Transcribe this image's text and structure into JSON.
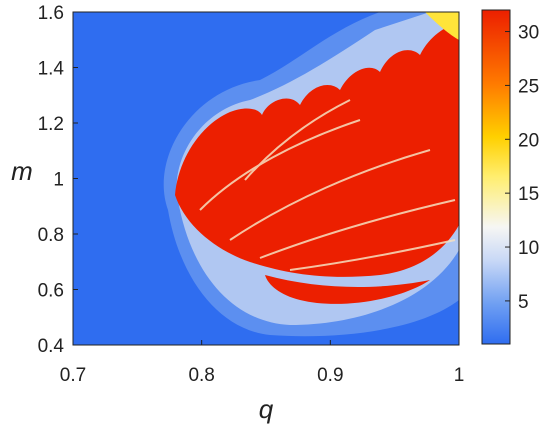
{
  "chart_data": {
    "type": "heatmap",
    "title": "",
    "xlabel": "q",
    "ylabel": "m",
    "xlim": [
      0.7,
      1.0
    ],
    "ylim": [
      0.4,
      1.6
    ],
    "x_ticks": [
      "0.7",
      "0.8",
      "0.9",
      "1"
    ],
    "x_tick_values": [
      0.7,
      0.8,
      0.9,
      1.0
    ],
    "y_ticks": [
      "0.4",
      "0.6",
      "0.8",
      "1",
      "1.2",
      "1.4",
      "1.6"
    ],
    "y_tick_values": [
      0.4,
      0.6,
      0.8,
      1.0,
      1.2,
      1.4,
      1.6
    ],
    "colorbar": {
      "range": [
        1,
        32
      ],
      "ticks": [
        "5",
        "10",
        "15",
        "20",
        "25",
        "30"
      ],
      "tick_values": [
        5,
        10,
        15,
        20,
        25,
        30
      ]
    },
    "grid": false,
    "colors": {
      "low": "#2f6df0",
      "mid_low": "#a9c3f5",
      "mid": "#f4f4f4",
      "mid_high": "#ffe43a",
      "high": "#ec1f00"
    }
  }
}
